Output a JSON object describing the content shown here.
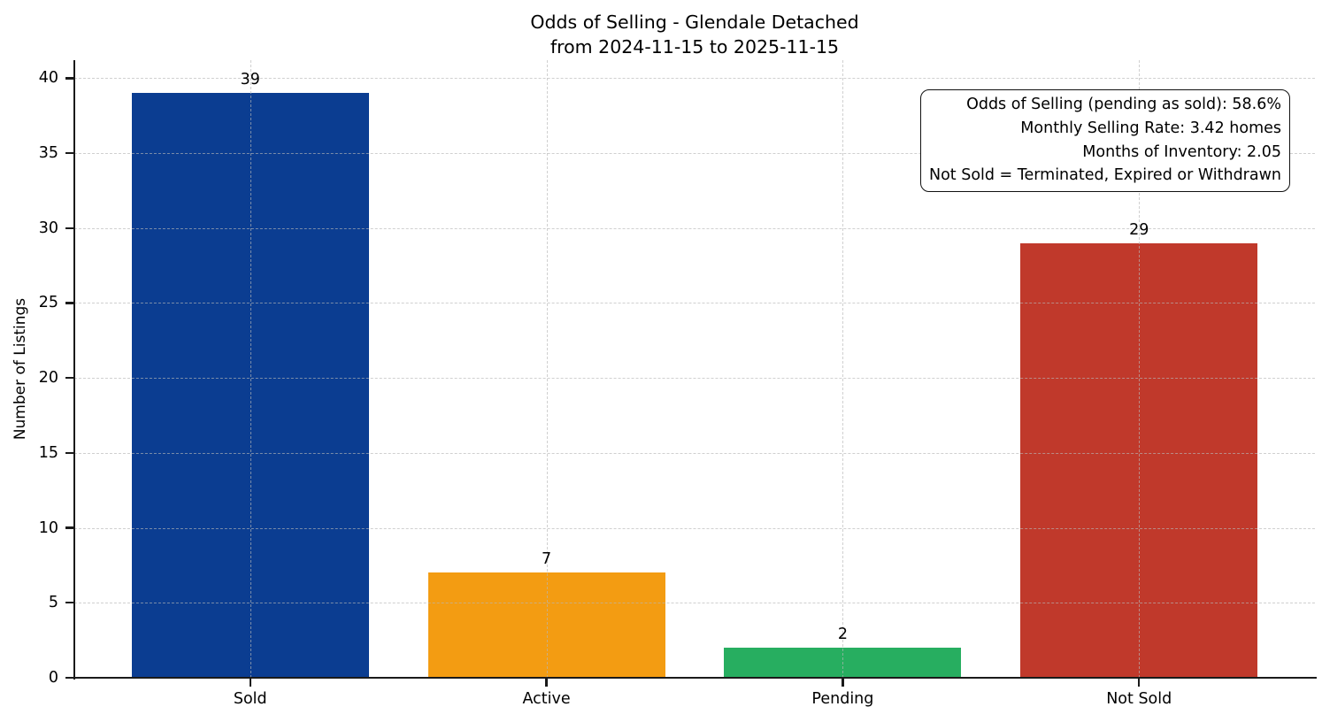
{
  "chart_data": {
    "type": "bar",
    "title": "Odds of Selling - Glendale Detached",
    "subtitle": "from 2024-11-15 to 2025-11-15",
    "categories": [
      "Sold",
      "Active",
      "Pending",
      "Not Sold"
    ],
    "values": [
      39,
      7,
      2,
      29
    ],
    "value_labels": [
      "39",
      "7",
      "2",
      "29"
    ],
    "bar_colors": [
      "#0b3d91",
      "#f39c12",
      "#27ae60",
      "#c0392b"
    ],
    "xlabel": "",
    "ylabel": "Number of Listings",
    "ylim": [
      0,
      41.2
    ],
    "yticks": [
      0,
      5,
      10,
      15,
      20,
      25,
      30,
      35,
      40
    ],
    "bar_width_fraction": 0.8,
    "grid": {
      "style": "dashed",
      "axes": "both",
      "color": "#d8d8d8",
      "drawn_over_bars": true
    },
    "legend": "none",
    "annotation": {
      "position": "top-right",
      "lines": [
        "Odds of Selling (pending as sold): 58.6%",
        "Monthly Selling Rate: 3.42 homes",
        "Months of Inventory: 2.05",
        "Not Sold = Terminated, Expired or Withdrawn"
      ]
    }
  }
}
